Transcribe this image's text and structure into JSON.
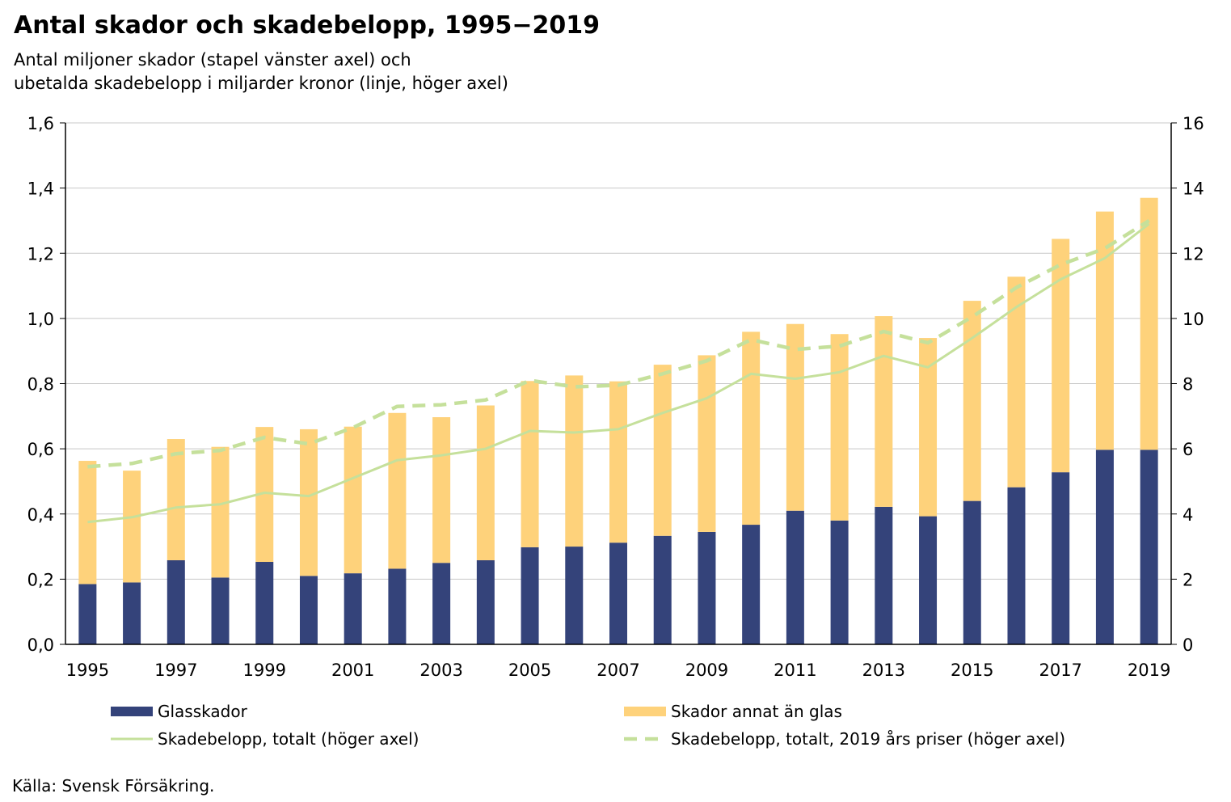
{
  "chart_data": {
    "type": "bar",
    "title": "Antal skador och skadebelopp, 1995−2019",
    "subtitle_lines": [
      "Antal miljoner skador (stapel vänster axel) och",
      "ubetalda skadebelopp i miljarder kronor (linje, höger axel)"
    ],
    "source": "Källa: Svensk Försäkring.",
    "categories": [
      "1995",
      "1996",
      "1997",
      "1998",
      "1999",
      "2000",
      "2001",
      "2002",
      "2003",
      "2004",
      "2005",
      "2006",
      "2007",
      "2008",
      "2009",
      "2010",
      "2011",
      "2012",
      "2013",
      "2014",
      "2015",
      "2016",
      "2017",
      "2018",
      "2019"
    ],
    "x_tick_labels": [
      "1995",
      "1997",
      "1999",
      "2001",
      "2003",
      "2005",
      "2007",
      "2009",
      "2011",
      "2013",
      "2015",
      "2017",
      "2019"
    ],
    "stacked": true,
    "series": [
      {
        "name": "Glasskador",
        "kind": "bar",
        "axis": "left",
        "color": "#34437a",
        "values": [
          0.185,
          0.19,
          0.258,
          0.205,
          0.253,
          0.21,
          0.218,
          0.232,
          0.25,
          0.258,
          0.298,
          0.3,
          0.312,
          0.333,
          0.345,
          0.367,
          0.41,
          0.38,
          0.422,
          0.393,
          0.44,
          0.482,
          0.528,
          0.597,
          0.597
        ]
      },
      {
        "name": "Skador annat än glas",
        "kind": "bar",
        "axis": "left",
        "color": "#fed27b",
        "values": [
          0.378,
          0.343,
          0.372,
          0.401,
          0.414,
          0.45,
          0.45,
          0.478,
          0.447,
          0.475,
          0.51,
          0.525,
          0.495,
          0.525,
          0.542,
          0.592,
          0.573,
          0.572,
          0.585,
          0.547,
          0.614,
          0.646,
          0.716,
          0.731,
          0.773
        ]
      },
      {
        "name": "Skadebelopp, totalt (höger axel)",
        "kind": "line",
        "axis": "right",
        "color": "#c5e09b",
        "dash": "solid",
        "values": [
          3.75,
          3.9,
          4.2,
          4.3,
          4.65,
          4.55,
          5.1,
          5.65,
          5.8,
          6.0,
          6.55,
          6.5,
          6.6,
          7.1,
          7.55,
          8.3,
          8.15,
          8.35,
          8.85,
          8.5,
          9.4,
          10.35,
          11.2,
          11.85,
          12.9
        ]
      },
      {
        "name": "Skadebelopp, totalt, 2019 års priser (höger axel)",
        "kind": "line",
        "axis": "right",
        "color": "#c5e09b",
        "dash": "dashed",
        "values": [
          5.45,
          5.55,
          5.85,
          5.95,
          6.35,
          6.15,
          6.65,
          7.3,
          7.35,
          7.5,
          8.1,
          7.9,
          7.95,
          8.3,
          8.7,
          9.35,
          9.05,
          9.15,
          9.6,
          9.25,
          10.05,
          10.95,
          11.65,
          12.15,
          13.0
        ]
      }
    ],
    "y_left": {
      "min": 0,
      "max": 1.6,
      "ticks": [
        "0,0",
        "0,2",
        "0,4",
        "0,6",
        "0,8",
        "1,0",
        "1,2",
        "1,4",
        "1,6"
      ]
    },
    "y_right": {
      "min": 0,
      "max": 16,
      "ticks": [
        "0",
        "2",
        "4",
        "6",
        "8",
        "10",
        "12",
        "14",
        "16"
      ]
    },
    "grid": true,
    "legend_placement": "bottom"
  }
}
